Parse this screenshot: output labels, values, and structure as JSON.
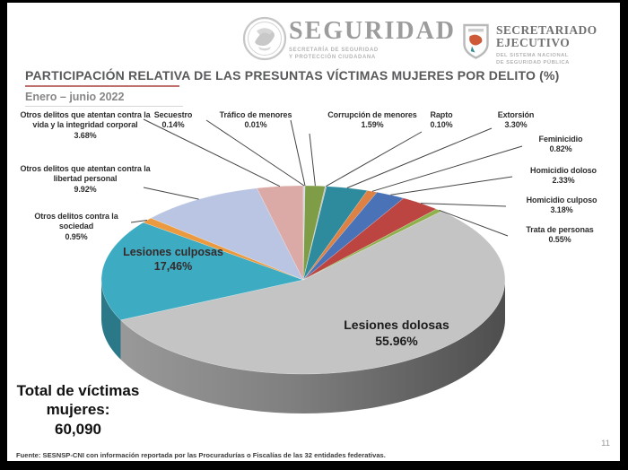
{
  "header": {
    "brand": {
      "title": "SEGURIDAD",
      "subtitle_line1": "SECRETARÍA DE SEGURIDAD",
      "subtitle_line2": "Y PROTECCIÓN CIUDADANA"
    },
    "org": {
      "title_line1": "SECRETARIADO",
      "title_line2": "EJECUTIVO",
      "subtitle_line1": "DEL SISTEMA NACIONAL",
      "subtitle_line2": "DE SEGURIDAD PÚBLICA"
    }
  },
  "title_block": {
    "title": "PARTICIPACIÓN RELATIVA DE LAS PRESUNTAS VÍCTIMAS MUJERES POR DELITO (%)",
    "period": "Enero – junio 2022"
  },
  "total": {
    "label_line1": "Total de víctimas",
    "label_line2": "mujeres:",
    "value": "60,090"
  },
  "footer": {
    "source": "Fuente: SESNSP-CNI con información reportada por las Procuradurías o Fiscalías de las 32 entidades federativas.",
    "page_number": "11"
  },
  "colors": {
    "title_underline": "#c0706c",
    "leader_line": "#454545"
  },
  "chart_data": {
    "type": "pie",
    "style": "3d",
    "unit": "%",
    "direction": "clockwise",
    "start_angle_deg": 0,
    "title": "Participación relativa de las presuntas víctimas mujeres por delito (%)",
    "period": "Enero – junio 2022",
    "total_victims": "60,090",
    "slices": [
      {
        "label": "Secuestro",
        "value": 0.14,
        "display": "0.14%",
        "color": "#ccd2d9"
      },
      {
        "label": "Tráfico de menores",
        "value": 0.01,
        "display": "0.01%",
        "color": "#f2f2f2"
      },
      {
        "label": "Corrupción de menores",
        "value": 1.59,
        "display": "1.59%",
        "color": "#7e9d46"
      },
      {
        "label": "Rapto",
        "value": 0.1,
        "display": "0.10%",
        "color": "#bdbdbd"
      },
      {
        "label": "Extorsión",
        "value": 3.3,
        "display": "3.30%",
        "color": "#2e8a9d"
      },
      {
        "label": "Feminicidio",
        "value": 0.82,
        "display": "0.82%",
        "color": "#dd8144"
      },
      {
        "label": "Homicidio doloso",
        "value": 2.33,
        "display": "2.33%",
        "color": "#4a73b7"
      },
      {
        "label": "Homicidio culposo",
        "value": 3.18,
        "display": "3.18%",
        "color": "#bc4542"
      },
      {
        "label": "Trata de personas",
        "value": 0.55,
        "display": "0.55%",
        "color": "#8fb14c"
      },
      {
        "label": "Lesiones dolosas",
        "value": 55.96,
        "display": "55.96%",
        "color": "#c4c4c4"
      },
      {
        "label": "Lesiones culposas",
        "value": 17.46,
        "display": "17,46%",
        "color": "#3dabc2"
      },
      {
        "label": "Otros delitos contra la sociedad",
        "value": 0.95,
        "display": "0.95%",
        "color": "#ec9a3f"
      },
      {
        "label": "Otros delitos que atentan contra la libertad personal",
        "value": 9.92,
        "display": "9.92%",
        "color": "#b9c5e2"
      },
      {
        "label": "Otros delitos que atentan contra la vida y la integridad corporal",
        "value": 3.68,
        "display": "3.68%",
        "color": "#dcaaa6"
      }
    ]
  }
}
